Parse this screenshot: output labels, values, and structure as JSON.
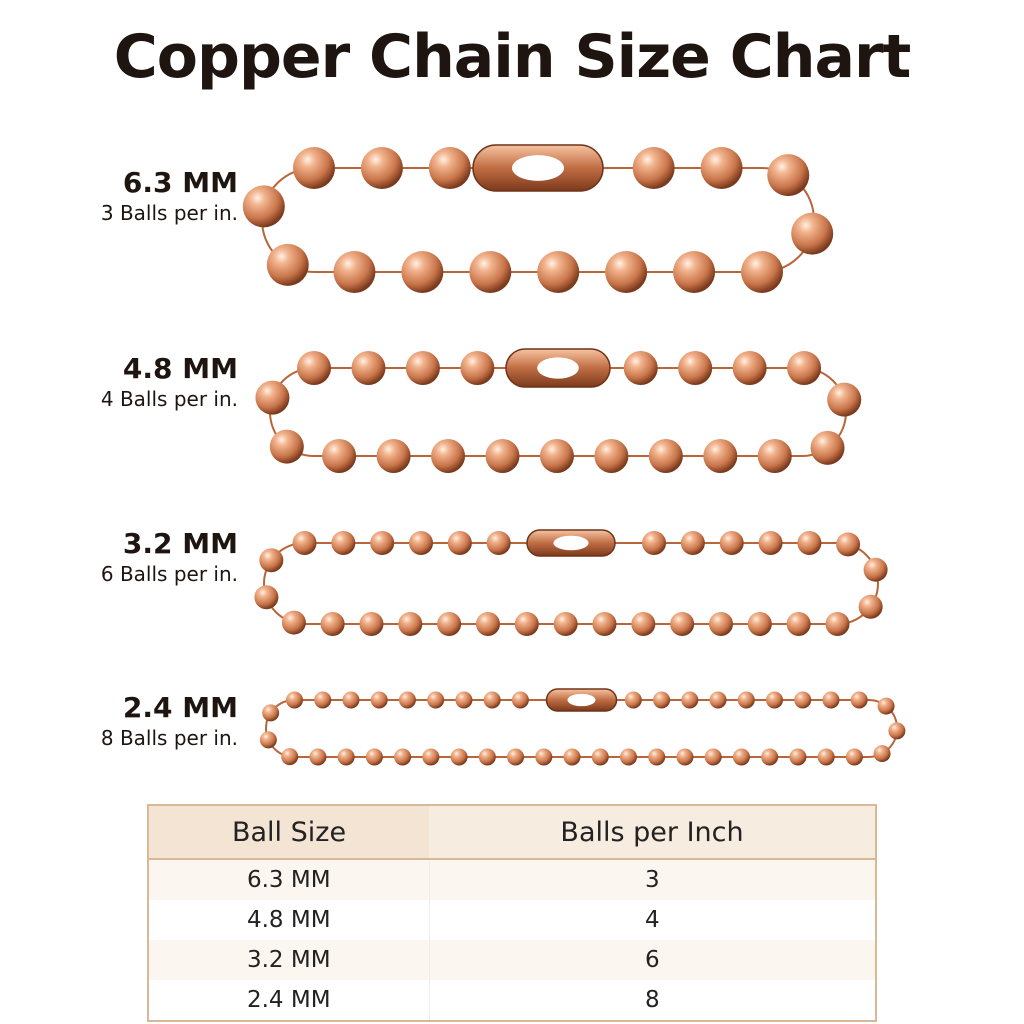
{
  "title": "Copper Chain Size Chart",
  "chains": [
    {
      "size": "6.3 MM",
      "note": "3 Balls per in."
    },
    {
      "size": "4.8 MM",
      "note": "4 Balls per in."
    },
    {
      "size": "3.2 MM",
      "note": "6 Balls per in."
    },
    {
      "size": "2.4 MM",
      "note": "8 Balls per in."
    }
  ],
  "table": {
    "headers": [
      "Ball Size",
      "Balls per Inch"
    ],
    "rows": [
      [
        "6.3 MM",
        3
      ],
      [
        "4.8 MM",
        4
      ],
      [
        "3.2 MM",
        6
      ],
      [
        "2.4 MM",
        8
      ]
    ]
  }
}
